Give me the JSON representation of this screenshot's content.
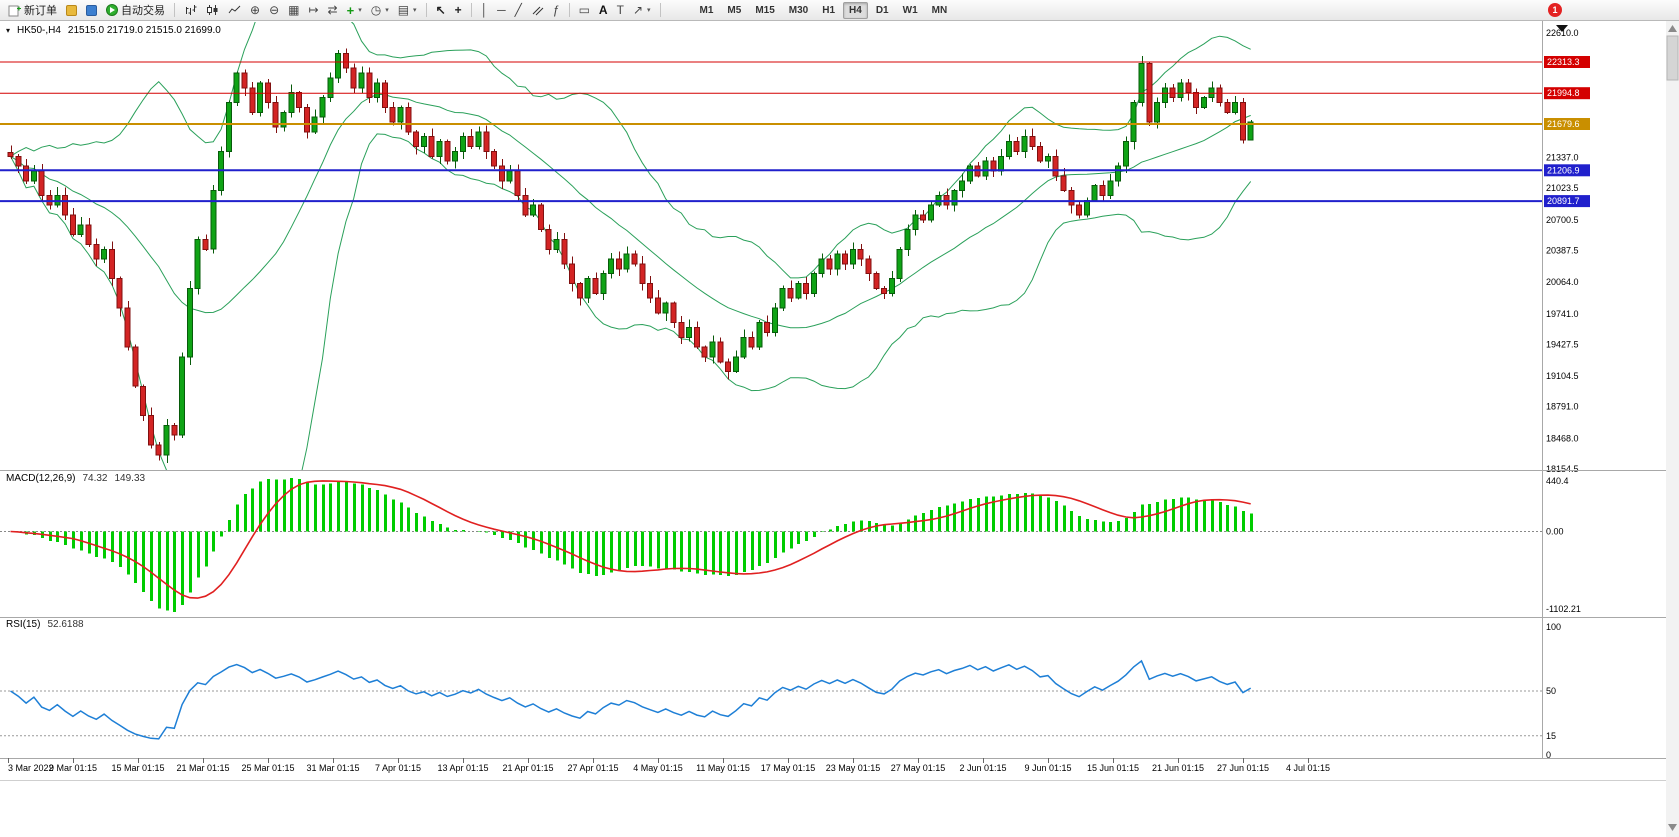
{
  "window": {
    "symbol_period": "HK50-,H4",
    "ohlc_text": "21515.0 21719.0 21515.0 21699.0"
  },
  "toolbar": {
    "new_order_label": "新订单",
    "auto_trading_label": "自动交易",
    "timeframes": [
      "M1",
      "M5",
      "M15",
      "M30",
      "H1",
      "H4",
      "D1",
      "W1",
      "MN"
    ],
    "active_timeframe": "H4",
    "notification_count": "1"
  },
  "chart_data": {
    "type": "candlestick",
    "symbol": "HK50-",
    "period": "H4",
    "current_bar": {
      "open": 21515.0,
      "high": 21719.0,
      "low": 21515.0,
      "close": 21699.0
    },
    "price_range": [
      18154.5,
      22610.0
    ],
    "price_axis_ticks": [
      22610.0,
      21337.0,
      21023.5,
      20700.5,
      20387.5,
      20064.0,
      19741.0,
      19427.5,
      19104.5,
      18791.0,
      18468.0,
      18154.5
    ],
    "hlines": [
      {
        "price": 22313.3,
        "color": "#d40000",
        "width": 1
      },
      {
        "price": 21994.8,
        "color": "#d40000",
        "width": 1
      },
      {
        "price": 21679.6,
        "color": "#c98f00",
        "width": 2
      },
      {
        "price": 21206.9,
        "color": "#2020cc",
        "width": 2
      },
      {
        "price": 20891.7,
        "color": "#2020cc",
        "width": 2
      }
    ],
    "up_color": "#0fa315",
    "down_color": "#d32424",
    "up_edge": "#075b0a",
    "down_edge": "#801010",
    "bollinger": {
      "period": 20,
      "deviation": 2,
      "color": "#2aa05a"
    },
    "closes": [
      21350,
      21250,
      21100,
      21200,
      20950,
      20850,
      20950,
      20750,
      20550,
      20650,
      20450,
      20300,
      20400,
      20100,
      19800,
      19400,
      19000,
      18700,
      18400,
      18300,
      18600,
      18500,
      19300,
      20000,
      20500,
      20400,
      21000,
      21400,
      21900,
      22200,
      22050,
      21800,
      22100,
      21900,
      21650,
      21800,
      22000,
      21850,
      21600,
      21750,
      21950,
      22150,
      22400,
      22250,
      22050,
      22200,
      21950,
      22100,
      21850,
      21700,
      21850,
      21600,
      21450,
      21550,
      21350,
      21500,
      21300,
      21400,
      21550,
      21450,
      21600,
      21400,
      21250,
      21100,
      21200,
      20950,
      20750,
      20850,
      20600,
      20400,
      20500,
      20250,
      20050,
      19900,
      20100,
      19950,
      20150,
      20300,
      20200,
      20350,
      20250,
      20050,
      19900,
      19750,
      19850,
      19650,
      19500,
      19600,
      19400,
      19300,
      19450,
      19250,
      19150,
      19300,
      19500,
      19400,
      19650,
      19550,
      19800,
      20000,
      19900,
      20050,
      19950,
      20150,
      20300,
      20200,
      20350,
      20250,
      20400,
      20300,
      20150,
      20000,
      19950,
      20100,
      20400,
      20600,
      20750,
      20700,
      20850,
      20950,
      20850,
      21000,
      21100,
      21250,
      21150,
      21300,
      21200,
      21350,
      21500,
      21400,
      21550,
      21450,
      21300,
      21350,
      21150,
      21000,
      20850,
      20750,
      20900,
      21050,
      20950,
      21100,
      21250,
      21500,
      21900,
      22300,
      21700,
      21900,
      22050,
      21950,
      22100,
      22000,
      21850,
      21950,
      22050,
      21900,
      21800,
      21900,
      21515,
      21699
    ],
    "time_labels": [
      "3 Mar 2022",
      "9 Mar 01:15",
      "15 Mar 01:15",
      "21 Mar 01:15",
      "25 Mar 01:15",
      "31 Mar 01:15",
      "7 Apr 01:15",
      "13 Apr 01:15",
      "21 Apr 01:15",
      "27 Apr 01:15",
      "4 May 01:15",
      "11 May 01:15",
      "17 May 01:15",
      "23 May 01:15",
      "27 May 01:15",
      "2 Jun 01:15",
      "9 Jun 01:15",
      "15 Jun 01:15",
      "21 Jun 01:15",
      "27 Jun 01:15",
      "4 Jul 01:15"
    ],
    "indicators": {
      "macd": {
        "label": "MACD(12,26,9)",
        "value": "74.32",
        "signal_value": "149.33",
        "axis_labels": [
          "440.4",
          "0.00",
          "-1102.21"
        ],
        "bar_color": "#00cc00",
        "signal_color": "#e02020"
      },
      "rsi": {
        "label": "RSI(15)",
        "value": "52.6188",
        "axis_values": [
          100,
          50,
          15,
          0
        ],
        "levels": [
          50,
          15
        ],
        "line_color": "#1e7fd6"
      }
    }
  }
}
